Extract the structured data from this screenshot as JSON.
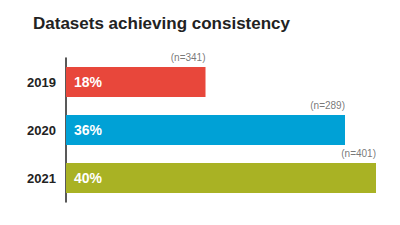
{
  "chart_data": {
    "type": "bar",
    "orientation": "horizontal",
    "title": "Datasets achieving consistency",
    "categories": [
      "2019",
      "2020",
      "2021"
    ],
    "values": [
      18,
      36,
      40
    ],
    "value_labels": [
      "18%",
      "36%",
      "40%"
    ],
    "colors": [
      "#e8473b",
      "#00a1d6",
      "#a9b224"
    ],
    "annotations": [
      "(n=341)",
      "(n=289)",
      "(n=401)"
    ],
    "xlim": [
      0,
      40
    ],
    "grid": false,
    "data_labels": true,
    "tick_labels": "y"
  }
}
